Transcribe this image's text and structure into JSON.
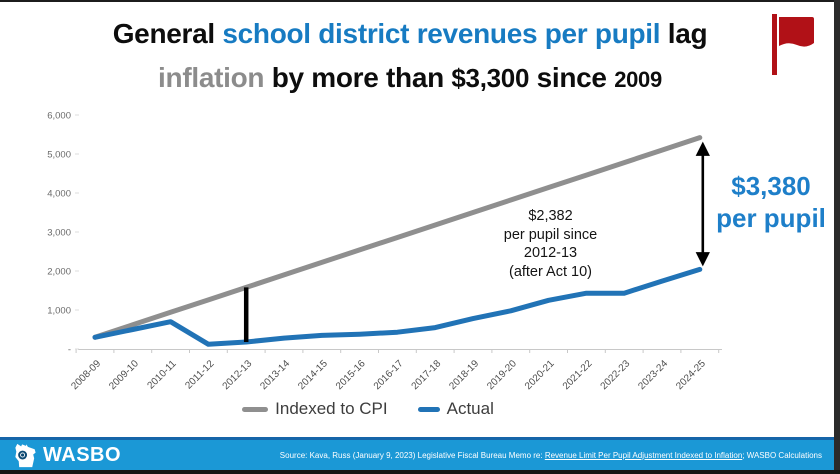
{
  "title": {
    "seg1": "General ",
    "seg2": "school district revenues per pupil",
    "seg3": " lag",
    "seg4": "inflation",
    "seg5": " by more than ",
    "seg6": "$3,300",
    "seg7": " since ",
    "seg8": "2009",
    "black_color": "#0d0d0d",
    "blue_color": "#177bc2",
    "gray_color": "#8c8c8c"
  },
  "flag": {
    "color": "#b11117"
  },
  "chart_data": {
    "type": "line",
    "categories": [
      "2008-09",
      "2009-10",
      "2010-11",
      "2011-12",
      "2012-13",
      "2013-14",
      "2014-15",
      "2015-16",
      "2016-17",
      "2017-18",
      "2018-19",
      "2019-20",
      "2020-21",
      "2021-22",
      "2022-23",
      "2023-24",
      "2024-25"
    ],
    "series": [
      {
        "name": "Indexed to CPI",
        "color": "#8f8f8f",
        "values": [
          300,
          620,
          940,
          1260,
          1580,
          1900,
          2220,
          2540,
          2860,
          3180,
          3500,
          3820,
          4140,
          4460,
          4780,
          5100,
          5420
        ]
      },
      {
        "name": "Actual",
        "color": "#2173b6",
        "values": [
          300,
          500,
          700,
          120,
          180,
          280,
          350,
          380,
          430,
          550,
          780,
          980,
          1250,
          1430,
          1430,
          1740,
          2040
        ]
      }
    ],
    "ylim": [
      0,
      6000
    ],
    "y_ticks": [
      {
        "value": 6000,
        "label": "6,000"
      },
      {
        "value": 5000,
        "label": "5,000"
      },
      {
        "value": 4000,
        "label": "4,000"
      },
      {
        "value": 3000,
        "label": "3,000"
      },
      {
        "value": 2000,
        "label": "2,000"
      },
      {
        "value": 1000,
        "label": "1,000"
      },
      {
        "value": 0,
        "label": "-"
      }
    ],
    "grid": false,
    "legend_position": "bottom",
    "marker_line": {
      "category": "2012-13",
      "from": 180,
      "to": 1580,
      "color": "#000000"
    },
    "gap_arrow": {
      "x_category": "2024-25",
      "from_value": 2040,
      "to_value": 5420,
      "gap": 3380,
      "color": "#000000"
    }
  },
  "annotations": {
    "mid": {
      "l1": "$2,382",
      "l2": "per pupil since",
      "l3": "2012-13",
      "l4": "(after Act 10)"
    },
    "right": {
      "l1": "$3,380",
      "l2": "per pupil",
      "color": "#1e7fc9"
    }
  },
  "legend": {
    "cpi": "Indexed to CPI",
    "actual": "Actual"
  },
  "footer": {
    "brand": "WASBO",
    "source_prefix": "Source: Kava, Russ (January 9, 2023) Legislative Fiscal Bureau Memo re: ",
    "source_link": "Revenue Limit Per Pupil Adjustment Indexed to Inflation",
    "source_suffix": "; WASBO Calculations",
    "bar_color": "#1b98d6",
    "accent_color": "#1565a9"
  }
}
